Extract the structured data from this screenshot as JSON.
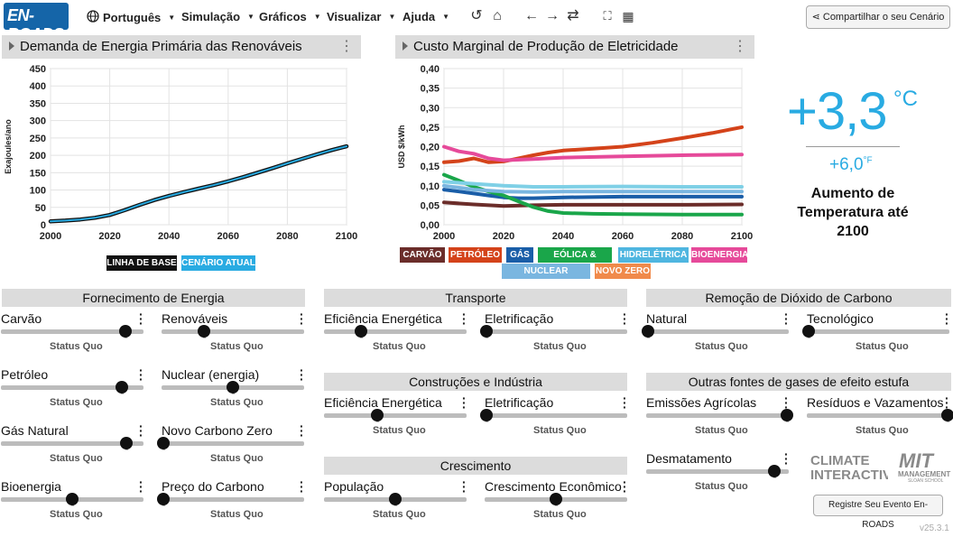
{
  "app": {
    "logo_text": "EN-ROADS",
    "logo_color": "#1565a8"
  },
  "menu": [
    {
      "label": "Português",
      "icon": "globe-icon"
    },
    {
      "label": "Simulação"
    },
    {
      "label": "Gráficos"
    },
    {
      "label": "Visualizar"
    },
    {
      "label": "Ajuda"
    }
  ],
  "toolbar_icons": [
    "undo-icon",
    "home-icon",
    "back-icon",
    "forward-icon",
    "refresh-icon",
    "fullscreen-icon",
    "grid-icon"
  ],
  "share_label": "Compartilhar o seu Cenário",
  "panels": {
    "left_title": "Demanda de Energia Primária das Renováveis",
    "right_title": "Custo Marginal de Produção de Eletricidade"
  },
  "chart_data": [
    {
      "type": "line",
      "title": "Demanda de Energia Primária das Renováveis",
      "ylabel": "Exajoules/ano",
      "xlabel": "",
      "ylim": [
        0,
        450
      ],
      "xlim": [
        2000,
        2100
      ],
      "yticks": [
        "0",
        "50",
        "100",
        "150",
        "200",
        "250",
        "300",
        "350",
        "400",
        "450"
      ],
      "xticks": [
        "2000",
        "2020",
        "2040",
        "2060",
        "2080",
        "2100"
      ],
      "grid": true,
      "legend": [
        {
          "name": "LINHA DE BASE",
          "color": "#111111"
        },
        {
          "name": "CENÁRIO ATUAL",
          "color": "#29abe2"
        }
      ],
      "series": [
        {
          "name": "LINHA DE BASE",
          "color": "#111111",
          "x": [
            2000,
            2005,
            2010,
            2015,
            2020,
            2025,
            2030,
            2035,
            2040,
            2045,
            2050,
            2055,
            2060,
            2065,
            2070,
            2075,
            2080,
            2085,
            2090,
            2095,
            2100
          ],
          "y": [
            10,
            12,
            15,
            20,
            28,
            42,
            57,
            71,
            83,
            94,
            104,
            114,
            125,
            137,
            150,
            163,
            177,
            190,
            203,
            215,
            226
          ]
        },
        {
          "name": "CENÁRIO ATUAL",
          "color": "#29abe2",
          "x": [
            2000,
            2005,
            2010,
            2015,
            2020,
            2025,
            2030,
            2035,
            2040,
            2045,
            2050,
            2055,
            2060,
            2065,
            2070,
            2075,
            2080,
            2085,
            2090,
            2095,
            2100
          ],
          "y": [
            10,
            12,
            15,
            20,
            28,
            42,
            57,
            71,
            83,
            94,
            104,
            114,
            125,
            137,
            150,
            163,
            177,
            190,
            203,
            215,
            226
          ]
        }
      ]
    },
    {
      "type": "line",
      "title": "Custo Marginal de Produção de Eletricidade",
      "ylabel": "USD $/kWh",
      "xlabel": "",
      "ylim": [
        0,
        0.4
      ],
      "xlim": [
        2000,
        2100
      ],
      "yticks": [
        "0,00",
        "0,05",
        "0,10",
        "0,15",
        "0,20",
        "0,25",
        "0,30",
        "0,35",
        "0,40"
      ],
      "xticks": [
        "2000",
        "2020",
        "2040",
        "2060",
        "2080",
        "2100"
      ],
      "grid": true,
      "series": [
        {
          "name": "CARVÃO",
          "color": "#6b2d2a",
          "x": [
            2000,
            2010,
            2020,
            2030,
            2040,
            2060,
            2080,
            2100
          ],
          "y": [
            0.057,
            0.052,
            0.048,
            0.05,
            0.051,
            0.051,
            0.051,
            0.052
          ]
        },
        {
          "name": "PETRÓLEO",
          "color": "#d4431a",
          "x": [
            2000,
            2005,
            2010,
            2015,
            2020,
            2025,
            2030,
            2035,
            2040,
            2050,
            2060,
            2070,
            2080,
            2090,
            2100
          ],
          "y": [
            0.16,
            0.163,
            0.17,
            0.16,
            0.162,
            0.17,
            0.178,
            0.185,
            0.19,
            0.195,
            0.2,
            0.21,
            0.222,
            0.235,
            0.25
          ]
        },
        {
          "name": "GÁS",
          "color": "#1a5ea8",
          "x": [
            2000,
            2005,
            2010,
            2015,
            2020,
            2025,
            2030,
            2040,
            2060,
            2080,
            2100
          ],
          "y": [
            0.09,
            0.085,
            0.08,
            0.075,
            0.07,
            0.068,
            0.068,
            0.07,
            0.072,
            0.072,
            0.072
          ]
        },
        {
          "name": "EÓLICA & SOLAR",
          "color": "#1aa64a",
          "x": [
            2000,
            2005,
            2010,
            2015,
            2020,
            2025,
            2030,
            2035,
            2040,
            2050,
            2060,
            2080,
            2100
          ],
          "y": [
            0.128,
            0.113,
            0.097,
            0.085,
            0.075,
            0.06,
            0.045,
            0.035,
            0.03,
            0.028,
            0.027,
            0.026,
            0.026
          ]
        },
        {
          "name": "HIDRELÉTRICA",
          "color": "#7fd0e6",
          "x": [
            2000,
            2010,
            2020,
            2030,
            2040,
            2060,
            2080,
            2100
          ],
          "y": [
            0.11,
            0.105,
            0.1,
            0.097,
            0.097,
            0.098,
            0.097,
            0.097
          ]
        },
        {
          "name": "BIOENERGIA",
          "color": "#e64a9a",
          "x": [
            2000,
            2005,
            2010,
            2015,
            2020,
            2030,
            2040,
            2060,
            2080,
            2100
          ],
          "y": [
            0.2,
            0.188,
            0.182,
            0.17,
            0.165,
            0.168,
            0.172,
            0.175,
            0.178,
            0.18
          ]
        },
        {
          "name": "NUCLEAR (ENERGIA)",
          "color": "#7ab6e0",
          "x": [
            2000,
            2010,
            2020,
            2030,
            2040,
            2060,
            2080,
            2100
          ],
          "y": [
            0.1,
            0.09,
            0.085,
            0.084,
            0.085,
            0.085,
            0.085,
            0.085
          ]
        },
        {
          "name": "NOVO ZERO",
          "color": "#f08a4b",
          "x": [],
          "y": []
        }
      ]
    }
  ],
  "right_legend": [
    {
      "name": "CARVÃO",
      "color": "#6b2d2a"
    },
    {
      "name": "PETRÓLEO",
      "color": "#d4431a"
    },
    {
      "name": "GÁS",
      "color": "#1a5ea8"
    },
    {
      "name": "EÓLICA & SOLAR",
      "color": "#1aa64a"
    },
    {
      "name": "HIDRELÉTRICA",
      "color": "#4fb6e0"
    },
    {
      "name": "BIOENERGIA",
      "color": "#e64a9a"
    },
    {
      "name": "NUCLEAR (ENERGIA)",
      "color": "#7ab6e0"
    },
    {
      "name": "NOVO ZERO",
      "color": "#f08a4b"
    }
  ],
  "temperature": {
    "celsius": "+3,3",
    "celsius_unit": "°C",
    "fahrenheit": "+6,0",
    "fahrenheit_unit": "°F",
    "label": "Aumento de Temperatura até 2100"
  },
  "sections": {
    "supply": "Fornecimento de Energia",
    "transport": "Transporte",
    "buildings": "Construções e Indústria",
    "growth": "Crescimento",
    "cdr": "Remoção de Dióxido de Carbono",
    "other_ghg": "Outras fontes de gases de efeito estufa"
  },
  "status_quo": "Status Quo",
  "sliders": {
    "carvao": {
      "label": "Carvão",
      "value": 0.88
    },
    "renovaveis": {
      "label": "Renováveis",
      "value": 0.29
    },
    "petroleo": {
      "label": "Petróleo",
      "value": 0.86
    },
    "nuclear": {
      "label": "Nuclear (energia)",
      "value": 0.5
    },
    "gas": {
      "label": "Gás Natural",
      "value": 0.89
    },
    "novo_zero": {
      "label": "Novo Carbono Zero",
      "value": 0.0
    },
    "bioenergia": {
      "label": "Bioenergia",
      "value": 0.5
    },
    "preco_carbono": {
      "label": "Preço do Carbono",
      "value": 0.0
    },
    "transp_eficiencia": {
      "label": "Eficiência Energética",
      "value": 0.25
    },
    "transp_eletrificacao": {
      "label": "Eletrificação",
      "value": 0.0
    },
    "const_eficiencia": {
      "label": "Eficiência Energética",
      "value": 0.37
    },
    "const_eletrificacao": {
      "label": "Eletrificação",
      "value": 0.0
    },
    "populacao": {
      "label": "População",
      "value": 0.5
    },
    "crescimento_econ": {
      "label": "Crescimento Econômico",
      "value": 0.5
    },
    "cdr_natural": {
      "label": "Natural",
      "value": 0.0
    },
    "cdr_tecnologico": {
      "label": "Tecnológico",
      "value": 0.0
    },
    "agricola": {
      "label": "Emissões Agrícolas",
      "value": 1.0
    },
    "residuos": {
      "label": "Resíduos e Vazamentos",
      "value": 1.0
    },
    "desmatamento": {
      "label": "Desmatamento",
      "value": 0.91
    }
  },
  "logos": {
    "climate_interactive": "CLIMATE INTERACTIVE",
    "mit": "MIT",
    "mit_sub": "MANAGEMENT",
    "mit_sub2": "SLOAN SCHOOL"
  },
  "register_label": "Registre Seu Evento En-ROADS",
  "version": "v25.3.1"
}
